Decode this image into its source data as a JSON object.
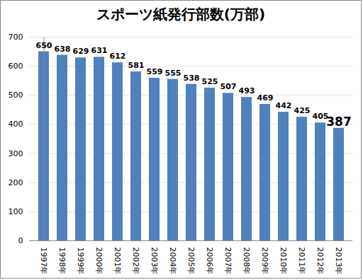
{
  "chart_data": {
    "type": "bar",
    "title": "スポーツ紙発行部数(万部)",
    "categories": [
      "1997年",
      "1998年",
      "1999年",
      "2000年",
      "2001年",
      "2002年",
      "2003年",
      "2004年",
      "2005年",
      "2006年",
      "2007年",
      "2008年",
      "2009年",
      "2010年",
      "2011年",
      "2012年",
      "2013年"
    ],
    "values": [
      650,
      638,
      629,
      631,
      612,
      581,
      559,
      555,
      538,
      525,
      507,
      493,
      469,
      442,
      425,
      405,
      387
    ],
    "color": "#4f81bd",
    "ylim": [
      0,
      700
    ],
    "yticks": [
      0,
      100,
      200,
      300,
      400,
      500,
      600,
      700
    ],
    "grid": true,
    "data_labels": true
  }
}
